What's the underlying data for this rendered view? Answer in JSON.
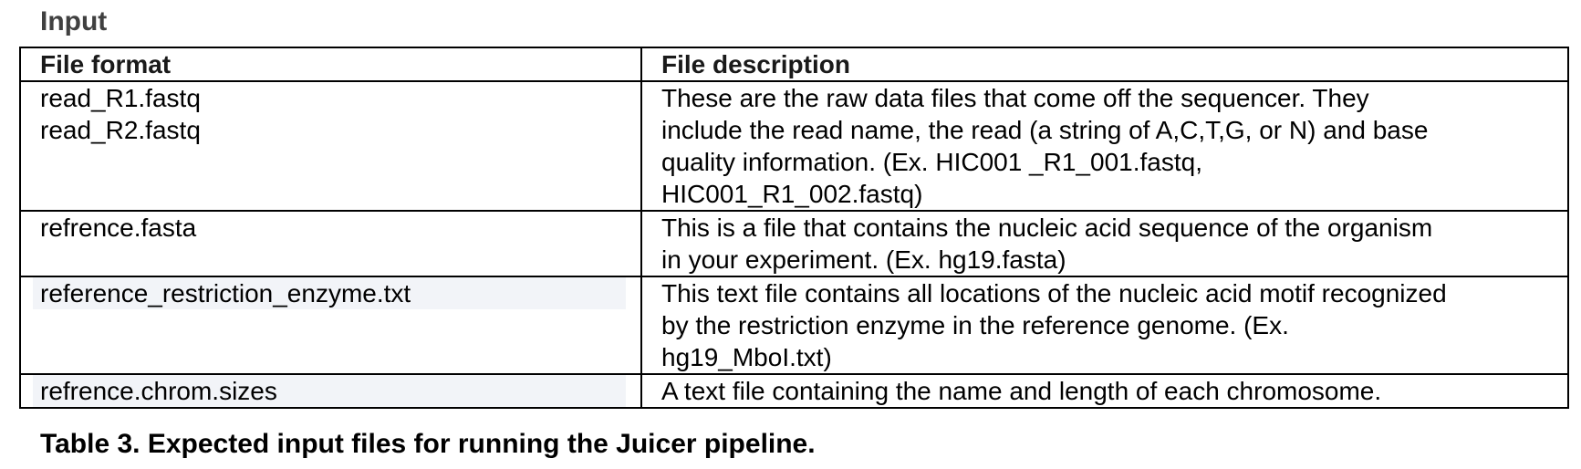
{
  "section_title": "Input",
  "table": {
    "headers": [
      "File format",
      "File description"
    ],
    "rows": [
      {
        "format": [
          "read_R1.fastq",
          "read_R2.fastq"
        ],
        "description": [
          "These are the raw data files that come off the sequencer. They",
          "include the read name, the read (a string of A,C,T,G, or N) and base",
          "quality information. (Ex. HIC001 _R1_001.fastq,",
          "HIC001_R1_002.fastq)"
        ]
      },
      {
        "format": [
          "refrence.fasta"
        ],
        "description": [
          "This is a file that contains the nucleic acid sequence of the organism",
          "in your experiment. (Ex. hg19.fasta)"
        ]
      },
      {
        "format": [
          "reference_restriction_enzyme.txt"
        ],
        "description": [
          "This text file contains all locations of the nucleic acid motif recognized",
          "by the restriction enzyme in the reference genome.  (Ex.",
          "hg19_MboI.txt)"
        ]
      },
      {
        "format": [
          "refrence.chrom.sizes"
        ],
        "description": [
          "A text file containing the name and length of each chromosome."
        ]
      }
    ]
  },
  "caption": "Table 3. Expected input files for running the Juicer pipeline."
}
